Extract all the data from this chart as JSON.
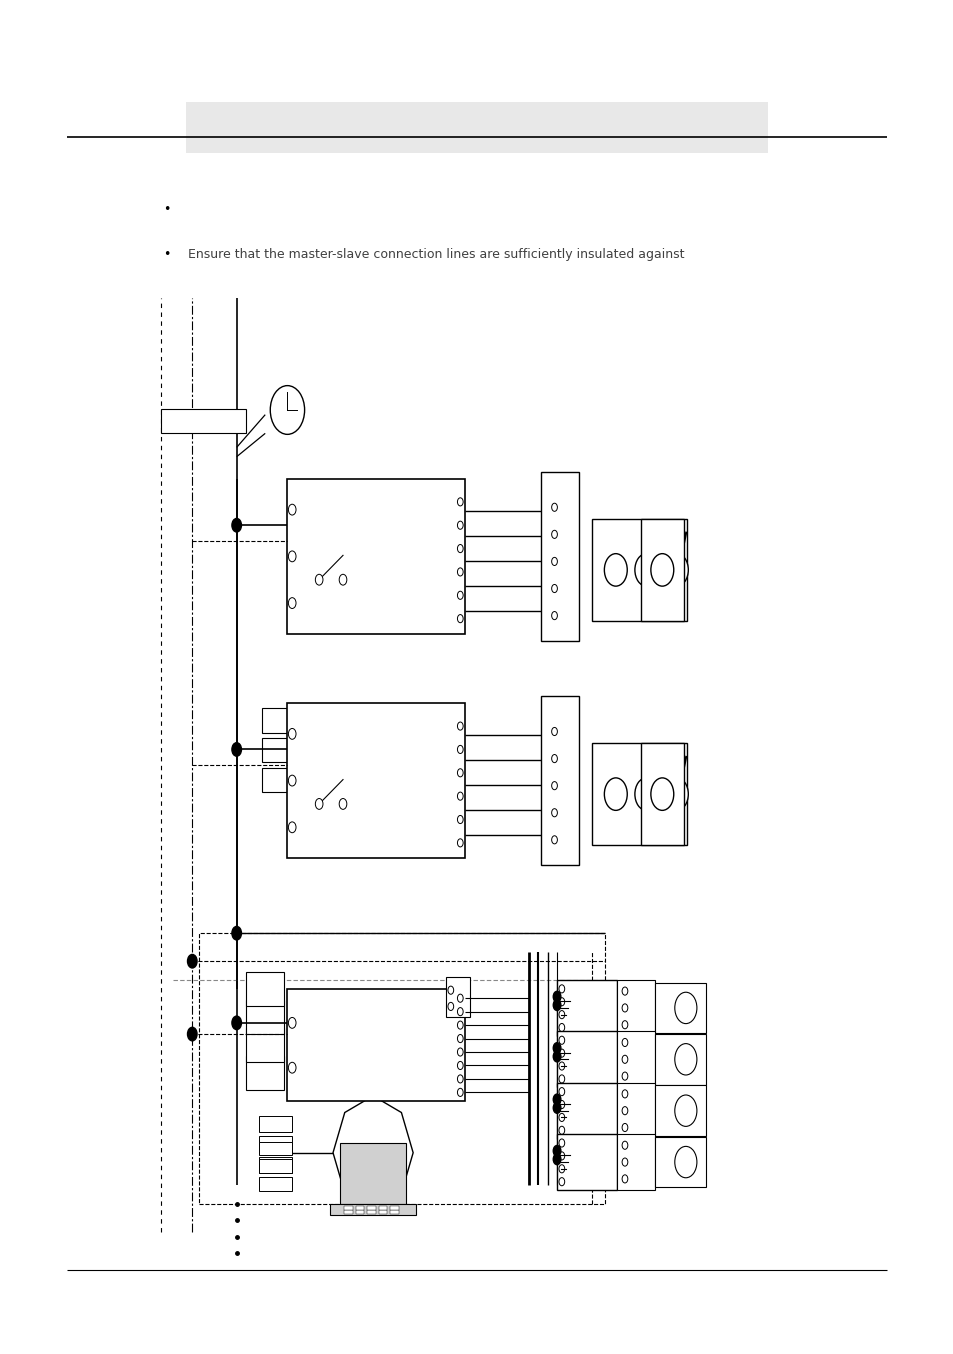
{
  "page_width": 9.54,
  "page_height": 13.54,
  "background_color": "#ffffff",
  "header_bar_color": "#e8e8e8",
  "bullet2_text": "Ensure that the master-slave connection lines are sufficiently insulated against",
  "text_fontsize": 9
}
